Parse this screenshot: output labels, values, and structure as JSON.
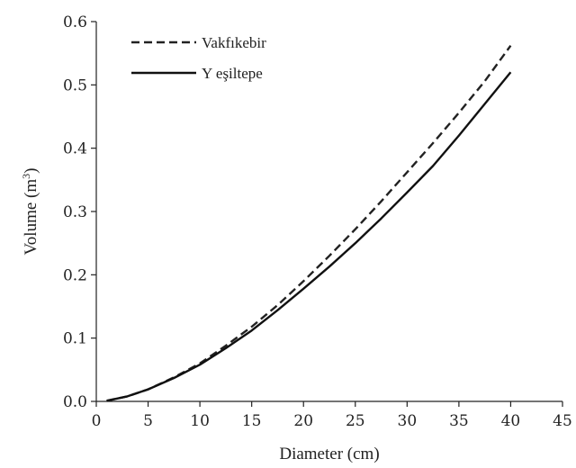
{
  "chart_data": {
    "type": "line",
    "title": "",
    "xlabel": "Diameter (cm)",
    "ylabel_main": "Volume (m",
    "ylabel_sup": "3",
    "ylabel_close": ")",
    "xlim": [
      0,
      45
    ],
    "ylim": [
      0,
      0.6
    ],
    "x_ticks": [
      "0",
      "5",
      "10",
      "15",
      "20",
      "25",
      "30",
      "35",
      "40",
      "45"
    ],
    "y_ticks": [
      "0.0",
      "0.1",
      "0.2",
      "0.3",
      "0.4",
      "0.5",
      "0.6"
    ],
    "grid": false,
    "legend_position": "top-left",
    "x": [
      1,
      3,
      5,
      7.5,
      10,
      12.5,
      15,
      17.5,
      20,
      22.5,
      25,
      27.5,
      30,
      32.5,
      35,
      37.5,
      40
    ],
    "series": [
      {
        "name": "Vakfıkebir",
        "style": "dashed",
        "color": "#222222",
        "values": [
          0.001,
          0.008,
          0.019,
          0.038,
          0.06,
          0.088,
          0.118,
          0.152,
          0.19,
          0.23,
          0.272,
          0.316,
          0.362,
          0.408,
          0.456,
          0.506,
          0.562
        ]
      },
      {
        "name": "Y eşiltepe",
        "style": "solid",
        "color": "#111111",
        "values": [
          0.001,
          0.008,
          0.019,
          0.037,
          0.058,
          0.084,
          0.112,
          0.144,
          0.178,
          0.213,
          0.25,
          0.289,
          0.33,
          0.372,
          0.42,
          0.47,
          0.52
        ]
      }
    ]
  }
}
